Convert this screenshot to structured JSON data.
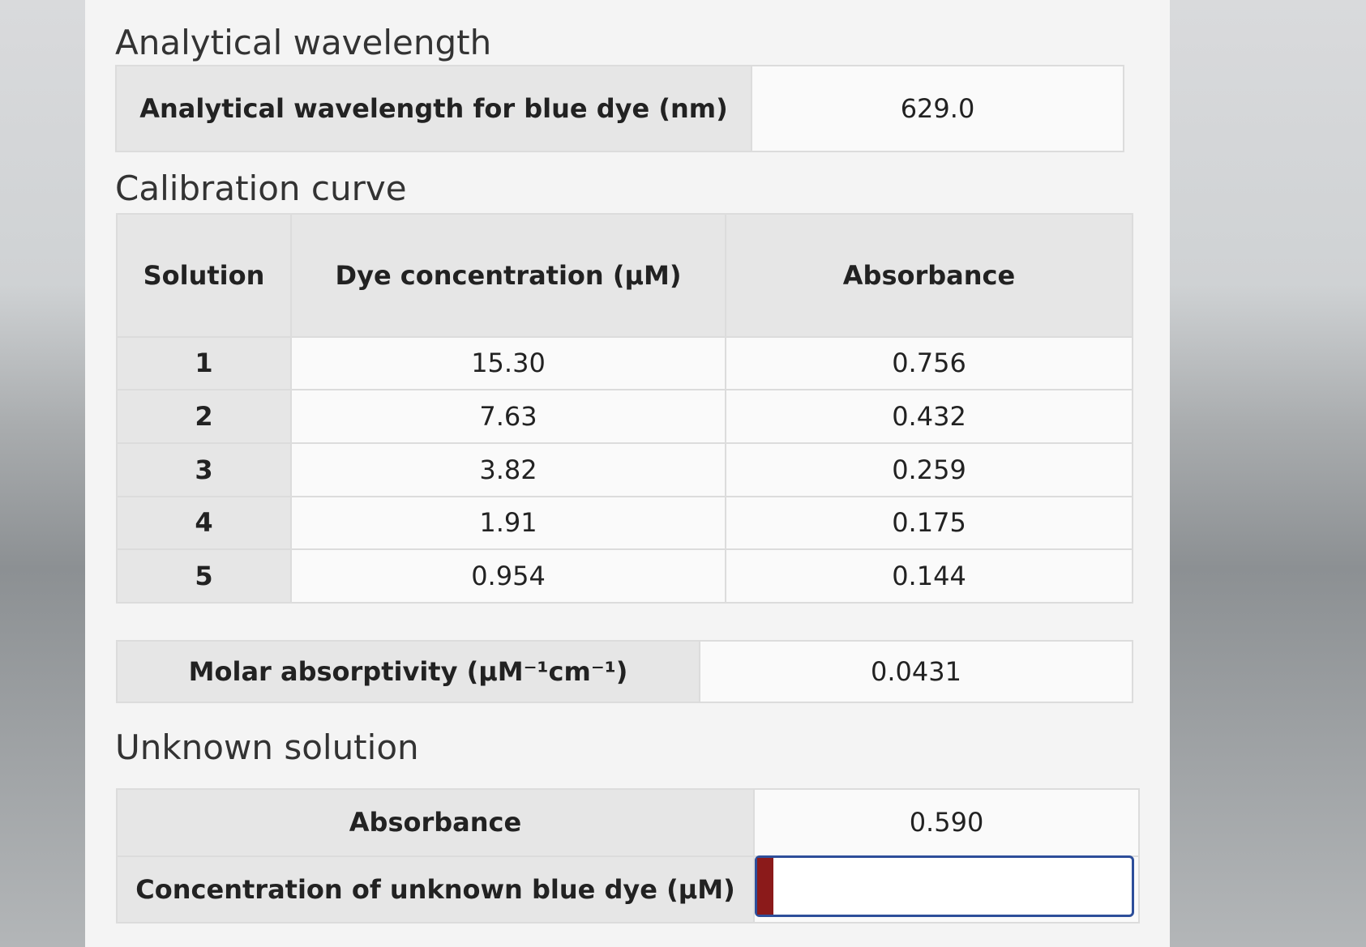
{
  "wavelength": {
    "title": "Analytical wavelength",
    "rows": [
      [
        "Analytical wavelength for blue dye (nm)",
        "629.0"
      ]
    ]
  },
  "calibration": {
    "title": "Calibration curve",
    "header": [
      "Solution",
      "Dye concentration (μM)",
      "Absorbance"
    ],
    "rows": [
      [
        "1",
        "15.30",
        "0.756"
      ],
      [
        "2",
        "7.63",
        "0.432"
      ],
      [
        "3",
        "3.82",
        "0.259"
      ],
      [
        "4",
        "1.91",
        "0.175"
      ],
      [
        "5",
        "0.954",
        "0.144"
      ]
    ],
    "molar": [
      "Molar absorptivity (μM⁻¹cm⁻¹)",
      "0.0431"
    ]
  },
  "unknown": {
    "title": "Unknown solution",
    "rows": [
      [
        "Absorbance",
        "0.590"
      ],
      [
        "Concentration of unknown blue dye (μM)"
      ]
    ]
  }
}
